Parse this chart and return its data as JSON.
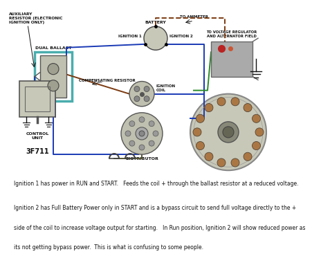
{
  "bg_color": "#ffffff",
  "diagram_bg": "#ffffff",
  "line1": "Ignition 1 has power in RUN and START.   Feeds the coil + through the ballast resistor at a reduced voltage.",
  "line2": "Ignition 2 has Full Battery Power only in START and is a bypass circuit to send full voltage directly to the +",
  "line3": "side of the coil to increase voltage output for starting.   In Run position, Ignition 2 will show reduced power as",
  "line4": "its not getting bypass power.  This is what is confusing to some people.",
  "label_auxiliary": "AUXILIARY\nRESISTOR (ELECTRONIC\nIGNITION ONLY)",
  "label_dual_ballast": "DUAL BALLAST",
  "label_battery": "BATTERY",
  "label_to_ammeter": "TO AMMETER",
  "label_ignition1": "IGNITION 1",
  "label_ignition2": "IGNITION 2",
  "label_to_voltage": "TO VOLTAGE REGULATOR\nAND ALTERNATOR FIELD",
  "label_comp_resistor": "COMPENSATING RESISTOR",
  "label_ign_coil": "IGNITION\nCOIL",
  "label_distributor": "DISTRIBUTOR",
  "label_control": "CONTROL\nUNIT",
  "label_3f711": "3F711",
  "color_blue": "#1a3ab5",
  "color_brown": "#7b3a10",
  "color_green": "#2a8a2a",
  "color_black": "#111111",
  "color_teal": "#4aadad",
  "color_gray": "#888888",
  "color_dark_olive": "#555533"
}
